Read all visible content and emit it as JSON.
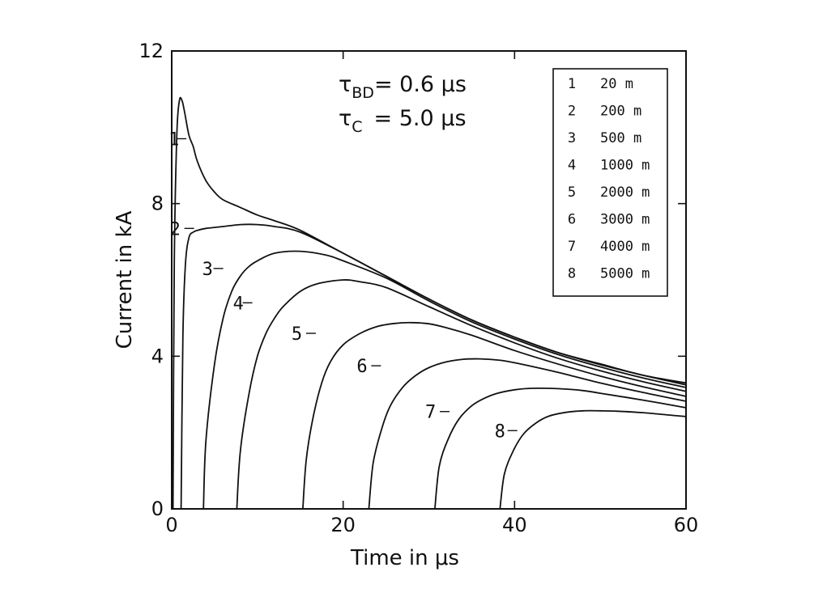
{
  "chart_data": {
    "type": "line",
    "xlabel": "Time in μs",
    "ylabel": "Current in kA",
    "xlim": [
      0,
      60
    ],
    "ylim": [
      0,
      12
    ],
    "xticks": [
      0,
      20,
      40,
      60
    ],
    "yticks": [
      0,
      4,
      8,
      12
    ],
    "grid": false,
    "legend_position": "top-right",
    "annotations": {
      "line1": {
        "tau": "τ",
        "sub": "BD",
        "rest": "= 0.6 μs"
      },
      "line2": {
        "tau": "τ",
        "sub": "C",
        "rest": "= 5.0 μs"
      }
    },
    "series": [
      {
        "name": "20 m",
        "legend_number": "1",
        "curve_label": "1",
        "x": [
          0.15,
          0.3,
          0.6,
          0.9,
          1.2,
          1.5,
          2,
          2.5,
          3,
          4,
          5,
          6,
          8,
          10,
          12,
          15,
          20,
          25,
          30,
          35,
          40,
          45,
          50,
          55,
          60
        ],
        "y": [
          0,
          6.5,
          9.8,
          10.7,
          10.7,
          10.4,
          9.8,
          9.5,
          9.1,
          8.6,
          8.3,
          8.1,
          7.9,
          7.7,
          7.55,
          7.3,
          6.7,
          6.1,
          5.5,
          4.95,
          4.5,
          4.1,
          3.8,
          3.5,
          3.3
        ]
      },
      {
        "name": "200 m",
        "legend_number": "2",
        "curve_label": "2",
        "x": [
          1.1,
          1.3,
          1.6,
          2,
          2.5,
          3,
          4,
          6,
          8,
          10,
          12,
          15,
          20,
          25,
          30,
          35,
          40,
          45,
          50,
          55,
          60
        ],
        "y": [
          0,
          4.5,
          6.4,
          7.1,
          7.25,
          7.3,
          7.35,
          7.4,
          7.45,
          7.45,
          7.4,
          7.25,
          6.7,
          6.1,
          5.5,
          4.95,
          4.5,
          4.1,
          3.78,
          3.5,
          3.25
        ]
      },
      {
        "name": "500 m",
        "legend_number": "3",
        "curve_label": "3",
        "x": [
          3.7,
          4,
          5,
          6,
          7,
          8,
          9,
          10,
          12,
          15,
          18,
          20,
          25,
          30,
          35,
          40,
          45,
          50,
          55,
          60
        ],
        "y": [
          0,
          1.8,
          3.8,
          5.0,
          5.7,
          6.1,
          6.35,
          6.5,
          6.7,
          6.75,
          6.65,
          6.5,
          6.05,
          5.45,
          4.9,
          4.45,
          4.05,
          3.72,
          3.43,
          3.18
        ]
      },
      {
        "name": "1000 m",
        "legend_number": "4",
        "curve_label": "4",
        "x": [
          7.6,
          8,
          9,
          10,
          11,
          12,
          13,
          15,
          17,
          20,
          22,
          25,
          30,
          35,
          40,
          45,
          50,
          55,
          60
        ],
        "y": [
          0,
          1.5,
          3.0,
          4.0,
          4.6,
          5.0,
          5.3,
          5.7,
          5.9,
          6.0,
          5.95,
          5.8,
          5.3,
          4.8,
          4.35,
          3.95,
          3.62,
          3.33,
          3.08
        ]
      },
      {
        "name": "2000 m",
        "legend_number": "5",
        "curve_label": "5",
        "x": [
          15.3,
          15.7,
          16.5,
          17.5,
          18.5,
          20,
          22,
          24,
          26,
          28,
          30,
          32,
          35,
          40,
          45,
          50,
          55,
          60
        ],
        "y": [
          0,
          1.3,
          2.4,
          3.3,
          3.85,
          4.3,
          4.6,
          4.78,
          4.86,
          4.88,
          4.85,
          4.75,
          4.55,
          4.15,
          3.8,
          3.48,
          3.2,
          2.95
        ]
      },
      {
        "name": "3000 m",
        "legend_number": "6",
        "curve_label": "6",
        "x": [
          23,
          23.5,
          24.5,
          25.5,
          27,
          28.5,
          30,
          32,
          34,
          36,
          38,
          40,
          45,
          50,
          55,
          60
        ],
        "y": [
          0,
          1.2,
          2.1,
          2.7,
          3.2,
          3.5,
          3.7,
          3.85,
          3.92,
          3.93,
          3.9,
          3.83,
          3.58,
          3.3,
          3.05,
          2.82
        ]
      },
      {
        "name": "4000 m",
        "legend_number": "7",
        "curve_label": "7",
        "x": [
          30.7,
          31.2,
          32.2,
          33.5,
          35,
          36.5,
          38,
          40,
          42,
          45,
          48,
          50,
          55,
          60
        ],
        "y": [
          0,
          1.1,
          1.8,
          2.35,
          2.7,
          2.9,
          3.03,
          3.12,
          3.16,
          3.15,
          3.1,
          3.03,
          2.85,
          2.65
        ]
      },
      {
        "name": "5000 m",
        "legend_number": "8",
        "curve_label": "8",
        "x": [
          38.3,
          38.8,
          39.8,
          41,
          42.5,
          44,
          46,
          48,
          50,
          52,
          55,
          58,
          60
        ],
        "y": [
          0,
          0.9,
          1.5,
          1.95,
          2.25,
          2.43,
          2.53,
          2.57,
          2.57,
          2.56,
          2.52,
          2.46,
          2.42
        ]
      }
    ]
  }
}
